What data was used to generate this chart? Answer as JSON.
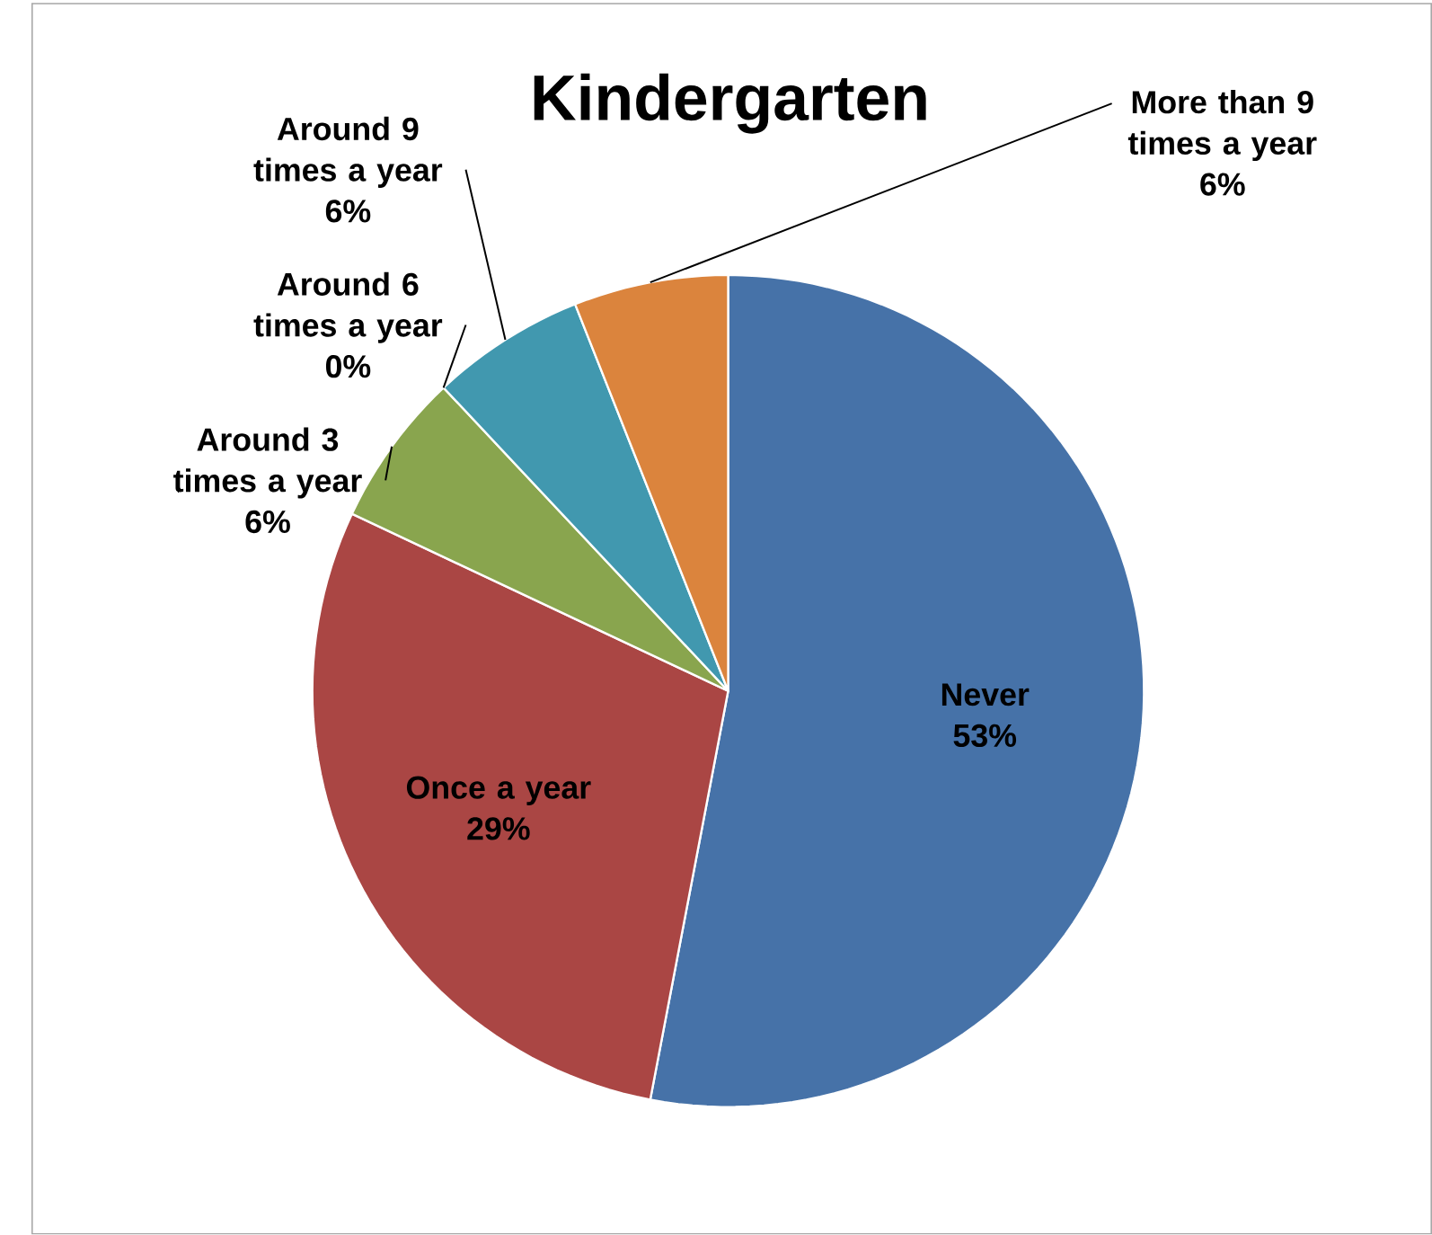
{
  "chart_data": {
    "type": "pie",
    "title": "Kindergarten",
    "categories": [
      "Never",
      "Once a year",
      "Around 3 times a year",
      "Around 6 times a year",
      "Around 9 times a year",
      "More than 9 times a year"
    ],
    "values": [
      53,
      29,
      6,
      0,
      6,
      6
    ],
    "value_labels": [
      "53%",
      "29%",
      "6%",
      "0%",
      "6%",
      "6%"
    ],
    "colors": [
      "#4672a8",
      "#aa4644",
      "#89a54e",
      "#71588f",
      "#4198af",
      "#db843d"
    ]
  }
}
